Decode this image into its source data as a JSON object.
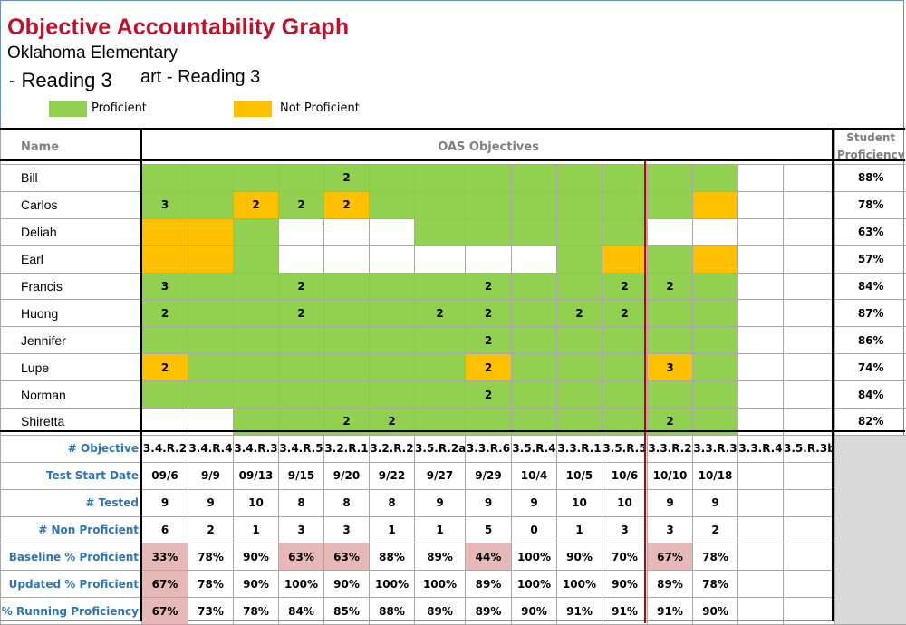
{
  "title": "Objective Accountability Graph",
  "school": "Oklahoma Elementary",
  "subtitle_behind": "art - Reading 3",
  "subtitle_front": "- Reading 3",
  "legend": [
    {
      "label": "Proficient",
      "color": "#92d050"
    },
    {
      "label": "Not Proficient",
      "color": "#ffc000"
    }
  ],
  "header": {
    "name": "Name",
    "objectives": "OAS Objectives",
    "student_proficiency": "Student Proficiency"
  },
  "colors": {
    "proficient": "#92d050",
    "not_proficient": "#ffc000",
    "highlight_pink": "#e6b9b8",
    "label_blue": "#2e75b6",
    "divider_red": "#c00000"
  },
  "students": [
    {
      "name": "Bill",
      "cells": [
        [
          "p",
          ""
        ],
        [
          "p",
          ""
        ],
        [
          "p",
          ""
        ],
        [
          "p",
          ""
        ],
        [
          "p",
          "2"
        ],
        [
          "p",
          ""
        ],
        [
          "p",
          ""
        ],
        [
          "p",
          ""
        ],
        [
          "p",
          ""
        ],
        [
          "p",
          ""
        ],
        [
          "p",
          ""
        ],
        [
          "p",
          ""
        ],
        [
          "p",
          ""
        ],
        [
          "w",
          ""
        ],
        [
          "w",
          ""
        ]
      ],
      "proficiency": "88%"
    },
    {
      "name": "Carlos",
      "cells": [
        [
          "p",
          "3"
        ],
        [
          "p",
          ""
        ],
        [
          "n",
          "2"
        ],
        [
          "p",
          "2"
        ],
        [
          "n",
          "2"
        ],
        [
          "p",
          ""
        ],
        [
          "p",
          ""
        ],
        [
          "p",
          ""
        ],
        [
          "p",
          ""
        ],
        [
          "p",
          ""
        ],
        [
          "p",
          ""
        ],
        [
          "p",
          ""
        ],
        [
          "n",
          ""
        ],
        [
          "w",
          ""
        ],
        [
          "w",
          ""
        ]
      ],
      "proficiency": "78%"
    },
    {
      "name": "Deliah",
      "cells": [
        [
          "n",
          ""
        ],
        [
          "n",
          ""
        ],
        [
          "p",
          ""
        ],
        [
          "w",
          ""
        ],
        [
          "w",
          ""
        ],
        [
          "w",
          ""
        ],
        [
          "p",
          ""
        ],
        [
          "p",
          ""
        ],
        [
          "p",
          ""
        ],
        [
          "p",
          ""
        ],
        [
          "p",
          ""
        ],
        [
          "w",
          ""
        ],
        [
          "w",
          ""
        ],
        [
          "w",
          ""
        ],
        [
          "w",
          ""
        ]
      ],
      "proficiency": "63%"
    },
    {
      "name": "Earl",
      "cells": [
        [
          "n",
          ""
        ],
        [
          "n",
          ""
        ],
        [
          "p",
          ""
        ],
        [
          "w",
          ""
        ],
        [
          "w",
          ""
        ],
        [
          "w",
          ""
        ],
        [
          "w",
          ""
        ],
        [
          "w",
          ""
        ],
        [
          "w",
          ""
        ],
        [
          "p",
          ""
        ],
        [
          "n",
          ""
        ],
        [
          "p",
          ""
        ],
        [
          "n",
          ""
        ],
        [
          "w",
          ""
        ],
        [
          "w",
          ""
        ]
      ],
      "proficiency": "57%"
    },
    {
      "name": "Francis",
      "cells": [
        [
          "p",
          "3"
        ],
        [
          "p",
          ""
        ],
        [
          "p",
          ""
        ],
        [
          "p",
          "2"
        ],
        [
          "p",
          ""
        ],
        [
          "p",
          ""
        ],
        [
          "p",
          ""
        ],
        [
          "p",
          "2"
        ],
        [
          "p",
          ""
        ],
        [
          "p",
          ""
        ],
        [
          "p",
          "2"
        ],
        [
          "p",
          "2"
        ],
        [
          "p",
          ""
        ],
        [
          "w",
          ""
        ],
        [
          "w",
          ""
        ]
      ],
      "proficiency": "84%"
    },
    {
      "name": "Huong",
      "cells": [
        [
          "p",
          "2"
        ],
        [
          "p",
          ""
        ],
        [
          "p",
          ""
        ],
        [
          "p",
          "2"
        ],
        [
          "p",
          ""
        ],
        [
          "p",
          ""
        ],
        [
          "p",
          "2"
        ],
        [
          "p",
          "2"
        ],
        [
          "p",
          ""
        ],
        [
          "p",
          "2"
        ],
        [
          "p",
          "2"
        ],
        [
          "p",
          ""
        ],
        [
          "p",
          ""
        ],
        [
          "w",
          ""
        ],
        [
          "w",
          ""
        ]
      ],
      "proficiency": "87%"
    },
    {
      "name": "Jennifer",
      "cells": [
        [
          "p",
          ""
        ],
        [
          "p",
          ""
        ],
        [
          "p",
          ""
        ],
        [
          "p",
          ""
        ],
        [
          "p",
          ""
        ],
        [
          "p",
          ""
        ],
        [
          "p",
          ""
        ],
        [
          "p",
          "2"
        ],
        [
          "p",
          ""
        ],
        [
          "p",
          ""
        ],
        [
          "p",
          ""
        ],
        [
          "p",
          ""
        ],
        [
          "p",
          ""
        ],
        [
          "w",
          ""
        ],
        [
          "w",
          ""
        ]
      ],
      "proficiency": "86%"
    },
    {
      "name": "Lupe",
      "cells": [
        [
          "n",
          "2"
        ],
        [
          "p",
          ""
        ],
        [
          "p",
          ""
        ],
        [
          "p",
          ""
        ],
        [
          "p",
          ""
        ],
        [
          "p",
          ""
        ],
        [
          "p",
          ""
        ],
        [
          "n",
          "2"
        ],
        [
          "p",
          ""
        ],
        [
          "p",
          ""
        ],
        [
          "p",
          ""
        ],
        [
          "n",
          "3"
        ],
        [
          "p",
          ""
        ],
        [
          "w",
          ""
        ],
        [
          "w",
          ""
        ]
      ],
      "proficiency": "74%"
    },
    {
      "name": "Norman",
      "cells": [
        [
          "p",
          ""
        ],
        [
          "p",
          ""
        ],
        [
          "p",
          ""
        ],
        [
          "p",
          ""
        ],
        [
          "p",
          ""
        ],
        [
          "p",
          ""
        ],
        [
          "p",
          ""
        ],
        [
          "p",
          "2"
        ],
        [
          "p",
          ""
        ],
        [
          "p",
          ""
        ],
        [
          "p",
          ""
        ],
        [
          "p",
          ""
        ],
        [
          "p",
          ""
        ],
        [
          "w",
          ""
        ],
        [
          "w",
          ""
        ]
      ],
      "proficiency": "84%"
    },
    {
      "name": "Shiretta",
      "cells": [
        [
          "w",
          ""
        ],
        [
          "w",
          ""
        ],
        [
          "p",
          ""
        ],
        [
          "p",
          ""
        ],
        [
          "p",
          "2"
        ],
        [
          "p",
          "2"
        ],
        [
          "p",
          ""
        ],
        [
          "p",
          ""
        ],
        [
          "p",
          ""
        ],
        [
          "p",
          ""
        ],
        [
          "p",
          ""
        ],
        [
          "p",
          "2"
        ],
        [
          "p",
          ""
        ],
        [
          "w",
          ""
        ],
        [
          "w",
          ""
        ]
      ],
      "proficiency": "82%"
    }
  ],
  "summary_rows": [
    {
      "label": "# Objective",
      "values": [
        "3.4.R.2",
        "3.4.R.4",
        "3.4.R.3",
        "3.4.R.5",
        "3.2.R.1",
        "3.2.R.2",
        "3.5.R.2a",
        "3.3.R.6",
        "3.5.R.4",
        "3.3.R.1",
        "3.5.R.5",
        "3.3.R.2",
        "3.3.R.3",
        "3.3.R.4",
        "3.5.R.3b"
      ],
      "pink": []
    },
    {
      "label": "Test Start Date",
      "values": [
        "09/6",
        "9/9",
        "09/13",
        "9/15",
        "9/20",
        "9/22",
        "9/27",
        "9/29",
        "10/4",
        "10/5",
        "10/6",
        "10/10",
        "10/18",
        "",
        ""
      ],
      "pink": []
    },
    {
      "label": "# Tested",
      "values": [
        "9",
        "9",
        "10",
        "8",
        "8",
        "8",
        "9",
        "9",
        "9",
        "10",
        "10",
        "9",
        "9",
        "",
        ""
      ],
      "pink": []
    },
    {
      "label": "# Non Proficient",
      "values": [
        "6",
        "2",
        "1",
        "3",
        "3",
        "1",
        "1",
        "5",
        "0",
        "1",
        "3",
        "3",
        "2",
        "",
        ""
      ],
      "pink": []
    },
    {
      "label": "Baseline % Proficient",
      "values": [
        "33%",
        "78%",
        "90%",
        "63%",
        "63%",
        "88%",
        "89%",
        "44%",
        "100%",
        "90%",
        "70%",
        "67%",
        "78%",
        "",
        ""
      ],
      "pink": [
        0,
        3,
        4,
        7,
        11
      ]
    },
    {
      "label": "Updated % Proficient",
      "values": [
        "67%",
        "78%",
        "90%",
        "100%",
        "90%",
        "100%",
        "100%",
        "89%",
        "100%",
        "100%",
        "90%",
        "89%",
        "78%",
        "",
        ""
      ],
      "pink": [
        0
      ]
    },
    {
      "label": "% Running Proficiency",
      "values": [
        "67%",
        "73%",
        "78%",
        "84%",
        "85%",
        "88%",
        "89%",
        "89%",
        "90%",
        "91%",
        "91%",
        "91%",
        "90%",
        "",
        ""
      ],
      "pink": [
        0
      ]
    }
  ]
}
